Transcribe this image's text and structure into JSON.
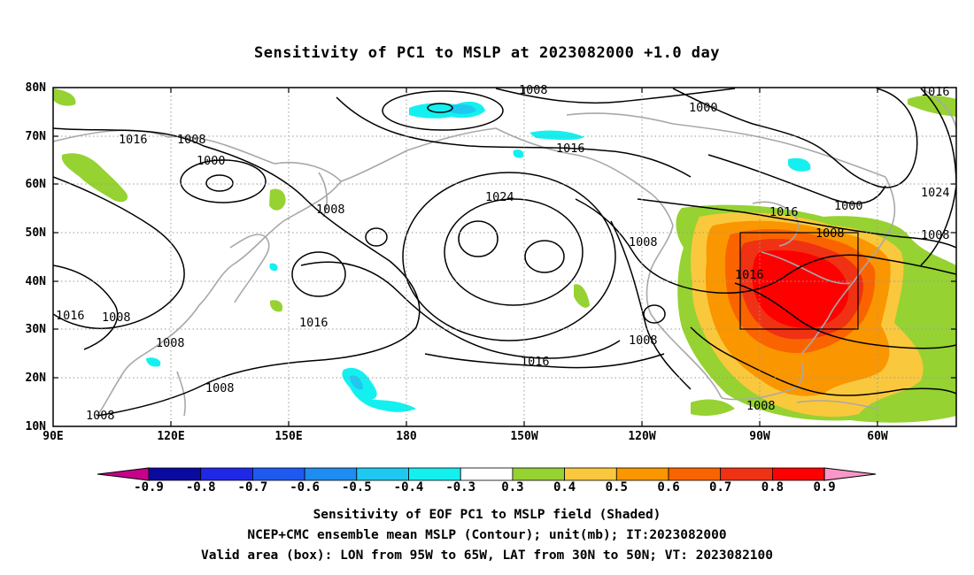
{
  "title": "Sensitivity of PC1 to MSLP at 2023082000 +1.0 day",
  "lat_labels": [
    "80N",
    "70N",
    "60N",
    "50N",
    "40N",
    "30N",
    "20N",
    "10N"
  ],
  "lon_labels": [
    "90E",
    "120E",
    "150E",
    "180",
    "150W",
    "120W",
    "90W",
    "60W"
  ],
  "colorbar": {
    "labels": [
      "-0.9",
      "-0.8",
      "-0.7",
      "-0.6",
      "-0.5",
      "-0.4",
      "-0.3",
      "0.3",
      "0.4",
      "0.5",
      "0.6",
      "0.7",
      "0.8",
      "0.9"
    ],
    "colors": [
      "#c8008c",
      "#0a0a9e",
      "#1e28e6",
      "#1e5af0",
      "#1e8cf0",
      "#1ec8f0",
      "#14f0f0",
      "#ffffff",
      "#96d232",
      "#fac83c",
      "#fa9600",
      "#fa6400",
      "#f03214",
      "#ff0000",
      "#fa96c8"
    ]
  },
  "contour_labels": [
    "1008",
    "1016",
    "1008",
    "1000",
    "1008",
    "1016",
    "1008",
    "1008",
    "1016",
    "1008",
    "1008",
    "1008",
    "1024",
    "1016",
    "1016",
    "1008",
    "1000",
    "1016",
    "1008",
    "1008",
    "1016",
    "1000",
    "1016",
    "1024",
    "1008"
  ],
  "captions": {
    "line1": "Sensitivity of EOF PC1 to MSLP field (Shaded)",
    "line2": "NCEP+CMC ensemble mean MSLP (Contour); unit(mb); IT:2023082000",
    "line3": "Valid area (box): LON from 95W to 65W, LAT from 30N to 50N; VT: 2023082100"
  }
}
